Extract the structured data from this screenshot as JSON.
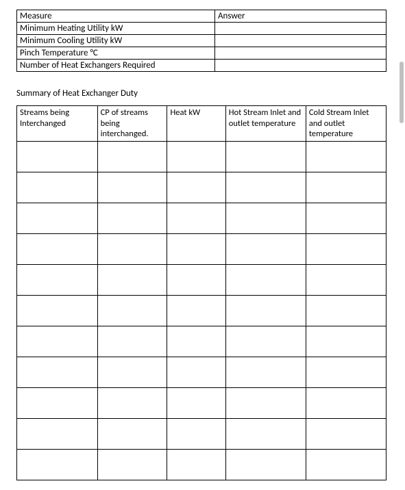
{
  "measure_table": {
    "header": {
      "col1": "Measure",
      "col2": "Answer"
    },
    "rows": [
      {
        "label": "Minimum Heating Utility kW",
        "answer": ""
      },
      {
        "label": "Minimum Cooling Utility kW",
        "answer": ""
      },
      {
        "label": "Pinch Temperature °C",
        "answer": ""
      },
      {
        "label": "Number of Heat Exchangers Required",
        "answer": ""
      }
    ]
  },
  "section_title": "Summary of Heat Exchanger Duty",
  "duty_table": {
    "columns": [
      "Streams being Interchanged",
      "CP of streams being interchanged.",
      "Heat kW",
      "Hot Stream Inlet and outlet temperature",
      "Cold Stream Inlet and outlet temperature"
    ],
    "num_rows": 11
  },
  "colors": {
    "border": "#000000",
    "background": "#ffffff",
    "text": "#000000",
    "scrollbar": "#c0c0c0"
  }
}
